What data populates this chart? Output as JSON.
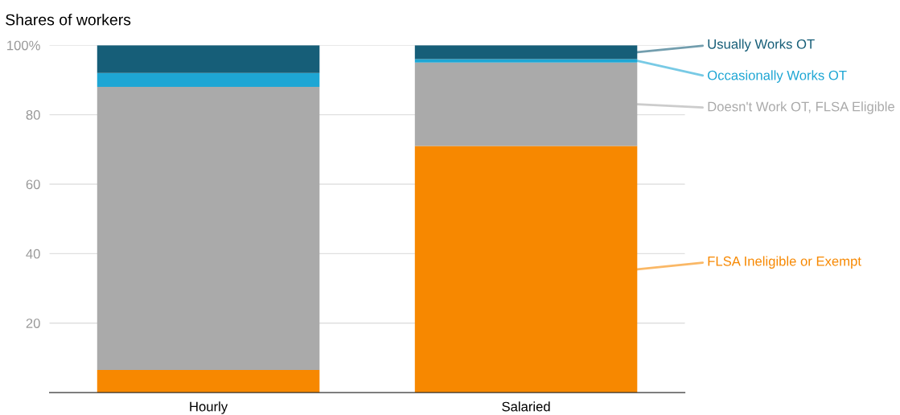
{
  "chart_data": {
    "type": "bar",
    "stacked": true,
    "title": "Shares of workers",
    "categories": [
      "Hourly",
      "Salaried"
    ],
    "series": [
      {
        "name": "FLSA Ineligible or Exempt",
        "color": "#f78800",
        "values": [
          6.5,
          71
        ]
      },
      {
        "name": "Doesn't Work OT, FLSA Eligible",
        "color": "#aaaaaa",
        "values": [
          81.5,
          24
        ]
      },
      {
        "name": "Occasionally Works OT",
        "color": "#1ea6d4",
        "values": [
          4,
          1
        ]
      },
      {
        "name": "Usually Works OT",
        "color": "#165e78",
        "values": [
          8,
          4
        ]
      }
    ],
    "ylim": [
      0,
      100
    ],
    "yticks": [
      20,
      40,
      60,
      80,
      {
        "value": 100,
        "label": "100%"
      }
    ],
    "grid": "y",
    "legend": "right"
  }
}
